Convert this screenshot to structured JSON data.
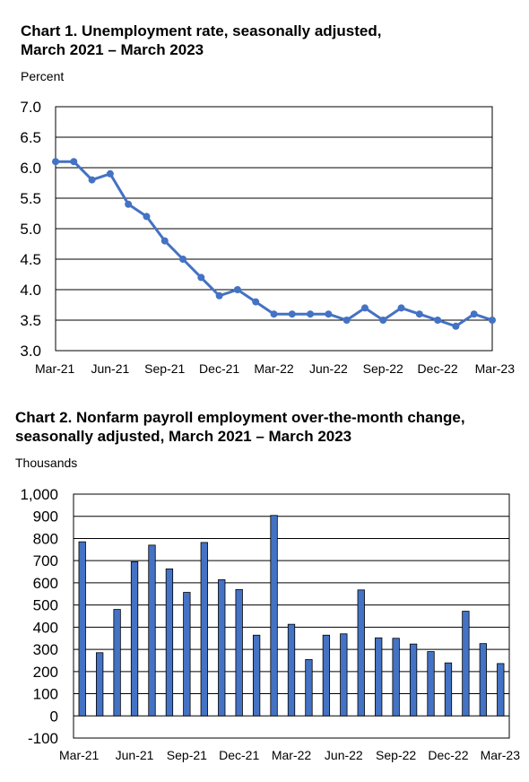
{
  "chart_data": [
    {
      "type": "line",
      "title": "Chart 1. Unemployment rate, seasonally adjusted,\nMarch 2021 – March 2023",
      "ylabel": "Percent",
      "xlabel": "",
      "ylim": [
        3.0,
        7.0
      ],
      "yticks": [
        "7.0",
        "6.5",
        "6.0",
        "5.5",
        "5.0",
        "4.5",
        "4.0",
        "3.5",
        "3.0"
      ],
      "xtick_labels": [
        "Mar-21",
        "Jun-21",
        "Sep-21",
        "Dec-21",
        "Mar-22",
        "Jun-22",
        "Sep-22",
        "Dec-22",
        "Mar-23"
      ],
      "x": [
        "Mar-21",
        "Apr-21",
        "May-21",
        "Jun-21",
        "Jul-21",
        "Aug-21",
        "Sep-21",
        "Oct-21",
        "Nov-21",
        "Dec-21",
        "Jan-22",
        "Feb-22",
        "Mar-22",
        "Apr-22",
        "May-22",
        "Jun-22",
        "Jul-22",
        "Aug-22",
        "Sep-22",
        "Oct-22",
        "Nov-22",
        "Dec-22",
        "Jan-23",
        "Feb-23",
        "Mar-23"
      ],
      "values": [
        6.1,
        6.1,
        5.8,
        5.9,
        5.4,
        5.2,
        4.8,
        4.5,
        4.2,
        3.9,
        4.0,
        3.8,
        3.6,
        3.6,
        3.6,
        3.6,
        3.5,
        3.7,
        3.5,
        3.7,
        3.6,
        3.5,
        3.4,
        3.6,
        3.5
      ],
      "color": "#4472c4",
      "grid": true
    },
    {
      "type": "bar",
      "title": "Chart 2. Nonfarm payroll employment over-the-month change,\nseasonally adjusted, March 2021 – March 2023",
      "ylabel": "Thousands",
      "xlabel": "",
      "ylim": [
        -100,
        1000
      ],
      "yticks": [
        "1,000",
        "900",
        "800",
        "700",
        "600",
        "500",
        "400",
        "300",
        "200",
        "100",
        "0",
        "-100"
      ],
      "xtick_labels": [
        "Mar-21",
        "Jun-21",
        "Sep-21",
        "Dec-21",
        "Mar-22",
        "Jun-22",
        "Sep-22",
        "Dec-22",
        "Mar-23"
      ],
      "x": [
        "Mar-21",
        "Apr-21",
        "May-21",
        "Jun-21",
        "Jul-21",
        "Aug-21",
        "Sep-21",
        "Oct-21",
        "Nov-21",
        "Dec-21",
        "Jan-22",
        "Feb-22",
        "Mar-22",
        "Apr-22",
        "May-22",
        "Jun-22",
        "Jul-22",
        "Aug-22",
        "Sep-22",
        "Oct-22",
        "Nov-22",
        "Dec-22",
        "Jan-23",
        "Feb-23",
        "Mar-23"
      ],
      "values": [
        785,
        285,
        480,
        695,
        770,
        663,
        557,
        782,
        614,
        570,
        364,
        904,
        413,
        254,
        364,
        370,
        568,
        352,
        350,
        324,
        290,
        239,
        472,
        326,
        236
      ],
      "color": "#4472c4",
      "grid": true
    }
  ]
}
